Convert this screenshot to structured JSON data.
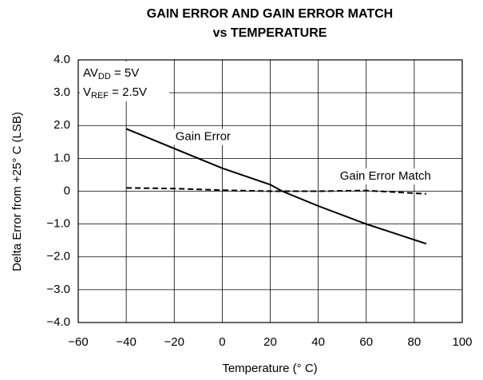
{
  "chart_data": {
    "type": "line",
    "title": [
      "GAIN ERROR AND GAIN ERROR MATCH",
      "vs TEMPERATURE"
    ],
    "xlabel": "Temperature (° C)",
    "ylabel": "Delta Error from +25° C (LSB)",
    "x": [
      -40,
      -20,
      0,
      20,
      25,
      40,
      60,
      85
    ],
    "series": [
      {
        "name": "Gain Error",
        "color": "#000000",
        "dash": false,
        "values": [
          1.9,
          1.3,
          0.7,
          0.2,
          0.0,
          -0.45,
          -1.0,
          -1.6
        ]
      },
      {
        "name": "Gain Error Match",
        "color": "#000000",
        "dash": true,
        "values": [
          0.1,
          0.08,
          0.03,
          0.0,
          0.0,
          0.0,
          0.02,
          -0.08
        ]
      }
    ],
    "xlim": [
      -60,
      100
    ],
    "ylim": [
      -4.0,
      4.0
    ],
    "xticks": [
      {
        "value": -60,
        "label": "−60"
      },
      {
        "value": -40,
        "label": "−40"
      },
      {
        "value": -20,
        "label": "−20"
      },
      0,
      20,
      40,
      60,
      80,
      100
    ],
    "yticks": [
      {
        "value": -4,
        "label": "−4.0"
      },
      {
        "value": -3,
        "label": "−3.0"
      },
      {
        "value": -2,
        "label": "−2.0"
      },
      {
        "value": -1,
        "label": "−1.0"
      },
      0,
      {
        "value": 1,
        "label": "1.0"
      },
      {
        "value": 2,
        "label": "2.0"
      },
      {
        "value": 3,
        "label": "3.0"
      },
      {
        "value": 4,
        "label": "4.0"
      }
    ],
    "grid": true,
    "annotations": [
      {
        "text": "AV",
        "sub": "DD",
        "rest": " = 5V"
      },
      {
        "text": "V",
        "sub": "REF",
        "rest": " = 2.5V"
      }
    ]
  }
}
